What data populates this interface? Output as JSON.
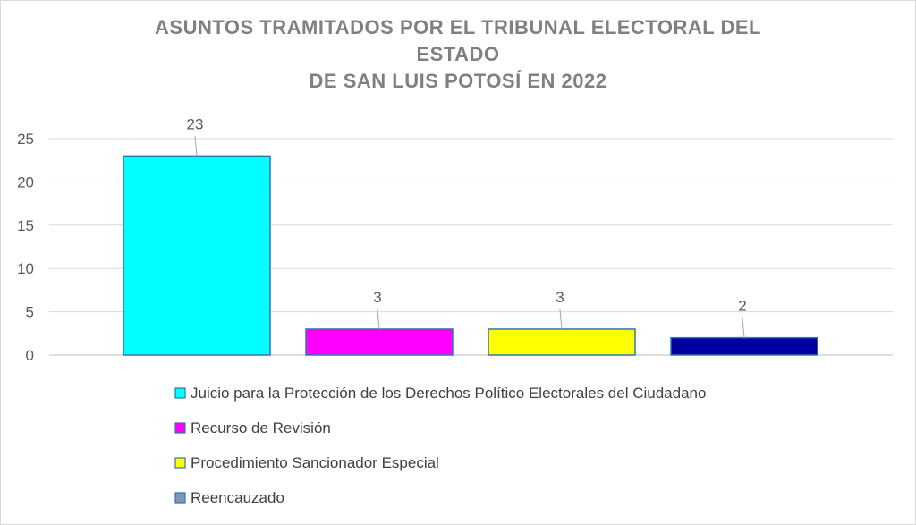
{
  "chart_data": {
    "type": "bar",
    "title_lines": [
      "ASUNTOS TRAMITADOS POR EL TRIBUNAL ELECTORAL DEL",
      "ESTADO",
      "DE SAN LUIS POTOSÍ EN 2022"
    ],
    "series": [
      {
        "name": "Juicio para la Protección de los Derechos Político Electorales del Ciudadano",
        "value": 23,
        "color": "#00FFFF",
        "legend_color": "#00FFFF"
      },
      {
        "name": "Recurso de Revisión",
        "value": 3,
        "color": "#FF00FF",
        "legend_color": "#FF00FF"
      },
      {
        "name": "Procedimiento Sancionador Especial",
        "value": 3,
        "color": "#FFFF00",
        "legend_color": "#FFFF00"
      },
      {
        "name": "Reencauzado",
        "value": 2,
        "color": "#0000A0",
        "legend_color": "#8497B0"
      }
    ],
    "y_ticks": [
      "0",
      "5",
      "10",
      "15",
      "20",
      "25"
    ],
    "ylim": [
      0,
      25
    ],
    "grid": true,
    "legend_position": "bottom"
  }
}
